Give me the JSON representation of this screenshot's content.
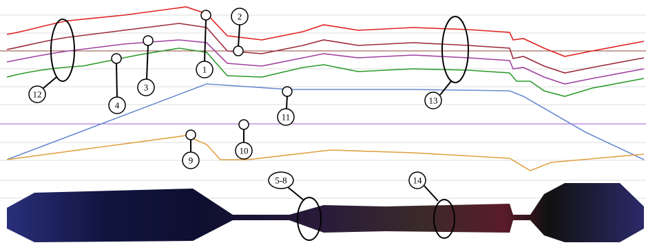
{
  "callouts": [
    {
      "label": "1"
    },
    {
      "label": "2"
    },
    {
      "label": "3"
    },
    {
      "label": "4"
    },
    {
      "label": "5-8"
    },
    {
      "label": "9"
    },
    {
      "label": "10"
    },
    {
      "label": "11"
    },
    {
      "label": "12"
    },
    {
      "label": "13"
    },
    {
      "label": "14"
    }
  ]
}
